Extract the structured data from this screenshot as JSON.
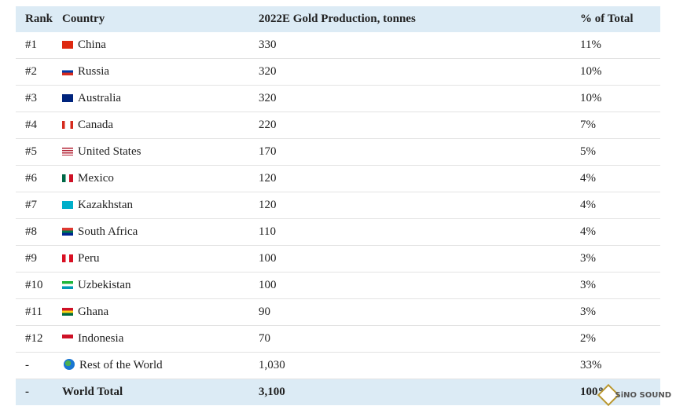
{
  "table": {
    "header": [
      "Rank",
      "Country",
      "2022E Gold Production, tonnes",
      "% of Total"
    ],
    "rows": [
      [
        "#1",
        "China",
        "330",
        "11%"
      ],
      [
        "#2",
        "Russia",
        "320",
        "10%"
      ],
      [
        "#3",
        "Australia",
        "320",
        "10%"
      ],
      [
        "#4",
        "Canada",
        "220",
        "7%"
      ],
      [
        "#5",
        "United States",
        "170",
        "5%"
      ],
      [
        "#6",
        "Mexico",
        "120",
        "4%"
      ],
      [
        "#7",
        "Kazakhstan",
        "120",
        "4%"
      ],
      [
        "#8",
        "South Africa",
        "110",
        "4%"
      ],
      [
        "#9",
        "Peru",
        "100",
        "3%"
      ],
      [
        "#10",
        "Uzbekistan",
        "100",
        "3%"
      ],
      [
        "#11",
        "Ghana",
        "90",
        "3%"
      ],
      [
        "#12",
        "Indonesia",
        "70",
        "2%"
      ],
      [
        "-",
        "Rest of the World",
        "1,030",
        "33%"
      ],
      [
        "-",
        "World Total",
        "3,100",
        "100%"
      ]
    ]
  },
  "watermark": "SiNO SOUND"
}
